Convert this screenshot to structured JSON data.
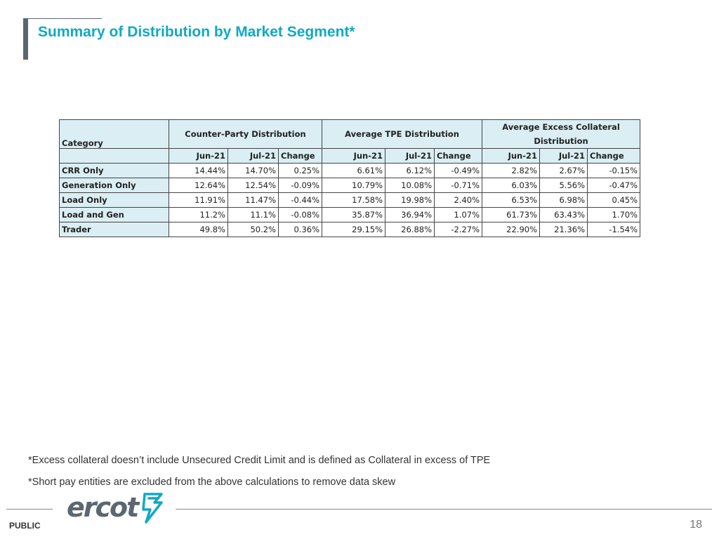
{
  "slide": {
    "title": "Summary of Distribution by Market Segment*",
    "page_number": "18",
    "classification": "PUBLIC",
    "logo_text": "ercot"
  },
  "table": {
    "category_header": "Category",
    "groups": [
      {
        "label": "Counter-Party Distribution"
      },
      {
        "label": "Average TPE Distribution"
      },
      {
        "label": "Average Excess Collateral Distribution"
      }
    ],
    "subheaders": [
      "Jun-21",
      "Jul-21",
      "Change"
    ],
    "rows": [
      {
        "category": "CRR Only",
        "values": [
          "14.44%",
          "14.70%",
          "0.25%",
          "6.61%",
          "6.12%",
          "-0.49%",
          "2.82%",
          "2.67%",
          "-0.15%"
        ]
      },
      {
        "category": "Generation Only",
        "values": [
          "12.64%",
          "12.54%",
          "-0.09%",
          "10.79%",
          "10.08%",
          "-0.71%",
          "6.03%",
          "5.56%",
          "-0.47%"
        ]
      },
      {
        "category": "Load Only",
        "values": [
          "11.91%",
          "11.47%",
          "-0.44%",
          "17.58%",
          "19.98%",
          "2.40%",
          "6.53%",
          "6.98%",
          "0.45%"
        ]
      },
      {
        "category": "Load and Gen",
        "values": [
          "11.2%",
          "11.1%",
          "-0.08%",
          "35.87%",
          "36.94%",
          "1.07%",
          "61.73%",
          "63.43%",
          "1.70%"
        ]
      },
      {
        "category": "Trader",
        "values": [
          "49.8%",
          "50.2%",
          "0.36%",
          "29.15%",
          "26.88%",
          "-2.27%",
          "22.90%",
          "21.36%",
          "-1.54%"
        ]
      }
    ]
  },
  "notes": [
    "*Excess collateral doesn’t include Unsecured Credit Limit and is defined as Collateral in excess of TPE",
    "*Short pay entities are excluded from the above calculations to remove data skew"
  ],
  "colors": {
    "title": "#10a9c4",
    "header_fill": "#daeef3",
    "brand_gray": "#5b6770",
    "brand_teal": "#10a9c4"
  }
}
